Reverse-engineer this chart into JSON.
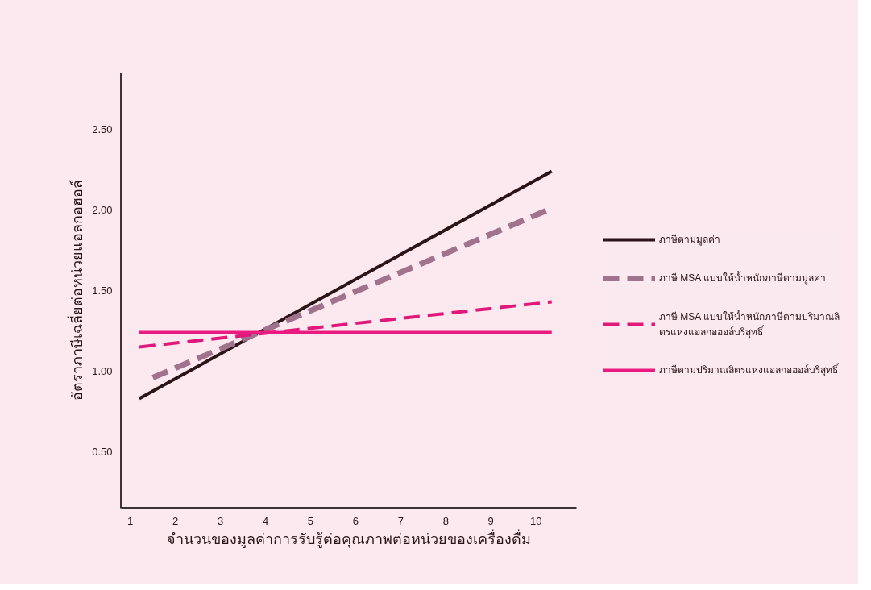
{
  "chart_data": {
    "type": "line",
    "xlabel": "จำนวนของมูลค่าการรับรู้ต่อคุณภาพต่อหน่วยของเครื่องดื่ม",
    "ylabel": "อัตราภาษีเฉลี่ยต่อหน่วยแอลกอฮอล์",
    "xlim": [
      0.8,
      10.9
    ],
    "xticks": [
      1,
      2,
      3,
      4,
      5,
      6,
      7,
      8,
      9,
      10
    ],
    "ylim": [
      0.15,
      2.85
    ],
    "yticks": [
      {
        "value": 0.5,
        "label": "0.50"
      },
      {
        "value": 1.0,
        "label": "1.00"
      },
      {
        "value": 1.5,
        "label": "1.50"
      },
      {
        "value": 2.0,
        "label": "2.00"
      },
      {
        "value": 2.5,
        "label": "2.50"
      }
    ],
    "grid": false,
    "legend": "right",
    "series": [
      {
        "name": "ภาษีตามมูลค่า",
        "color": "#2a1418",
        "line_style": "solid",
        "x": [
          1.2,
          10.35
        ],
        "values": [
          0.83,
          2.24
        ]
      },
      {
        "name": "ภาษี MSA แบบให้น้ำหนักภาษีตามมูลค่า",
        "color": "#a0728c",
        "line_style": "dashed",
        "x": [
          1.5,
          10.35
        ],
        "values": [
          0.96,
          2.01
        ]
      },
      {
        "name": "ภาษี MSA แบบให้น้ำหนักภาษีตามปริมาณลิตรแห่งแอลกอฮอล์บริสุทธิ์",
        "color": "#e0187a",
        "line_style": "dashed",
        "x": [
          1.2,
          10.35
        ],
        "values": [
          1.15,
          1.43
        ]
      },
      {
        "name": "ภาษีตามปริมาณลิตรแห่งแอลกอฮอล์บริสุทธิ์",
        "color": "#ea1a80",
        "line_style": "solid",
        "x": [
          1.2,
          10.35
        ],
        "values": [
          1.24,
          1.24
        ]
      }
    ]
  }
}
